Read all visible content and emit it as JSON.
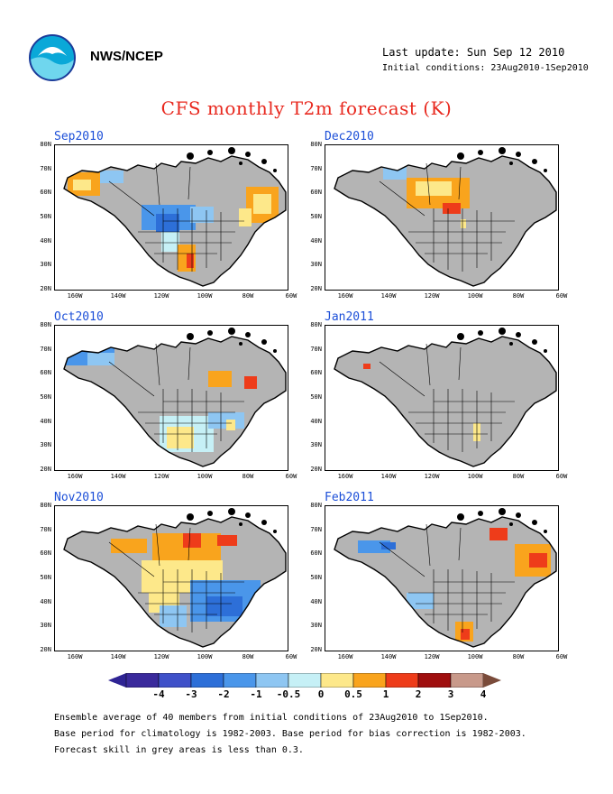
{
  "header": {
    "agency": "NWS/NCEP",
    "last_update": "Last update: Sun Sep 12 2010",
    "initial_conditions": "Initial conditions: 23Aug2010-1Sep2010"
  },
  "title": "CFS monthly T2m forecast (K)",
  "panels": [
    {
      "label": "Sep2010"
    },
    {
      "label": "Dec2010"
    },
    {
      "label": "Oct2010"
    },
    {
      "label": "Jan2011"
    },
    {
      "label": "Nov2010"
    },
    {
      "label": "Feb2011"
    }
  ],
  "axes": {
    "lat_labels": [
      "80N",
      "70N",
      "60N",
      "50N",
      "40N",
      "30N",
      "20N"
    ],
    "lon_labels": [
      "160W",
      "140W",
      "120W",
      "100W",
      "80W",
      "60W"
    ]
  },
  "colorbar": {
    "labels": [
      "-4",
      "-3",
      "-2",
      "-1",
      "-0.5",
      "0",
      "0.5",
      "1",
      "2",
      "3",
      "4"
    ],
    "colors": [
      "#3a2a9c",
      "#3f51c9",
      "#2d6fd8",
      "#4a96ea",
      "#8ec6f2",
      "#c6f0f6",
      "#fde88a",
      "#f9a41d",
      "#ee3c1a",
      "#a00f0f",
      "#c8998a",
      "#8c5a48"
    ],
    "left_arrow_color": "#2f2494",
    "right_arrow_color": "#7a4b3a"
  },
  "colors": {
    "grey_skill": "#b4b4b4",
    "title_red": "#e8281e",
    "panel_title_blue": "#1c4fd8"
  },
  "footer": [
    "Ensemble average of 40 members from initial conditions of 23Aug2010 to 1Sep2010.",
    "Base period for climatology is 1982-2003. Base period for bias correction is 1982-2003.",
    "Forecast skill in grey areas is less than 0.3."
  ]
}
